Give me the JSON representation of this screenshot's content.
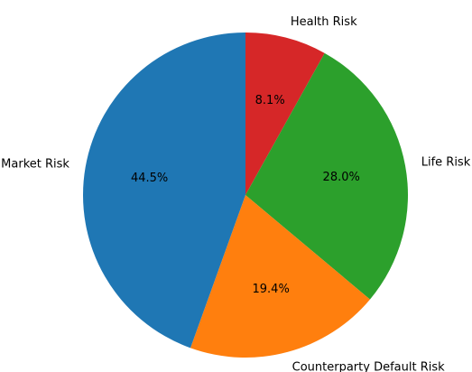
{
  "chart_data": {
    "type": "pie",
    "title": "",
    "slices": [
      {
        "label": "Health Risk",
        "percent": "8.1%",
        "value": 8.1,
        "color": "#d62728"
      },
      {
        "label": "Life Risk",
        "percent": "28.0%",
        "value": 28.0,
        "color": "#2ca02c"
      },
      {
        "label": "Counterparty Default Risk",
        "percent": "19.4%",
        "value": 19.4,
        "color": "#ff7f0e"
      },
      {
        "label": "Market Risk",
        "percent": "44.5%",
        "value": 44.5,
        "color": "#1f77b4"
      }
    ],
    "start_angle": "top",
    "direction": "clockwise"
  }
}
